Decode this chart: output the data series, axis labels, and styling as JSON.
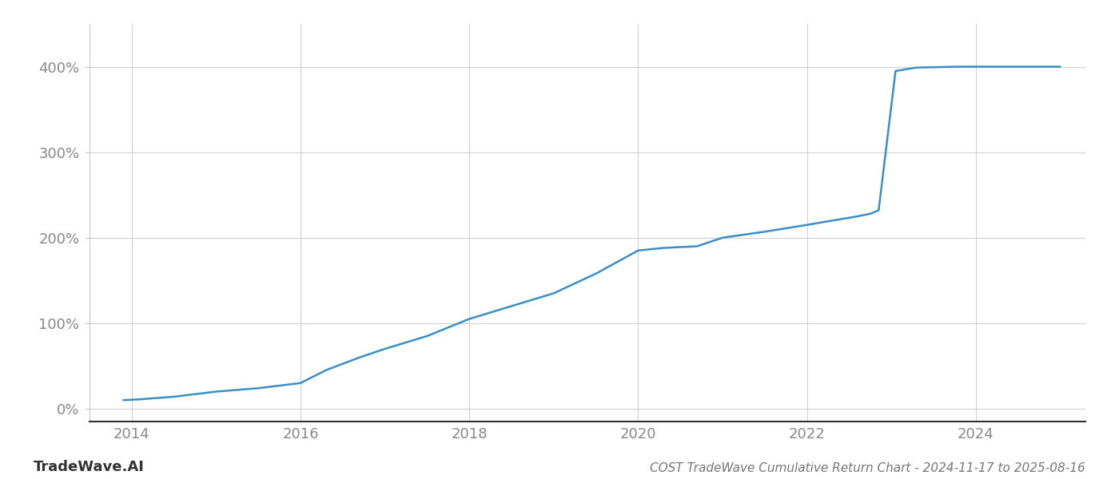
{
  "title": "COST TradeWave Cumulative Return Chart - 2024-11-17 to 2025-08-16",
  "line_color": "#3a8ec8",
  "line_width": 1.8,
  "background_color": "#ffffff",
  "grid_color": "#d0d0d0",
  "x_data": [
    2013.9,
    2014.1,
    2014.5,
    2015.0,
    2015.5,
    2016.0,
    2016.3,
    2016.7,
    2017.0,
    2017.5,
    2018.0,
    2018.5,
    2019.0,
    2019.5,
    2020.0,
    2020.3,
    2020.7,
    2021.0,
    2021.5,
    2022.0,
    2022.3,
    2022.6,
    2022.75,
    2022.85,
    2023.05,
    2023.3,
    2023.8,
    2024.0,
    2024.5,
    2025.0
  ],
  "y_data": [
    10,
    11,
    14,
    20,
    24,
    30,
    45,
    60,
    70,
    85,
    105,
    120,
    135,
    158,
    185,
    188,
    190,
    200,
    207,
    215,
    220,
    225,
    228,
    232,
    395,
    399,
    400,
    400,
    400,
    400
  ],
  "yticks": [
    0,
    100,
    200,
    300,
    400
  ],
  "ylim": [
    -15,
    450
  ],
  "xlim": [
    2013.5,
    2025.3
  ],
  "xticks": [
    2014,
    2016,
    2018,
    2020,
    2022,
    2024
  ],
  "watermark_text": "TradeWave.AI",
  "title_fontsize": 11,
  "tick_fontsize": 13,
  "watermark_fontsize": 13
}
